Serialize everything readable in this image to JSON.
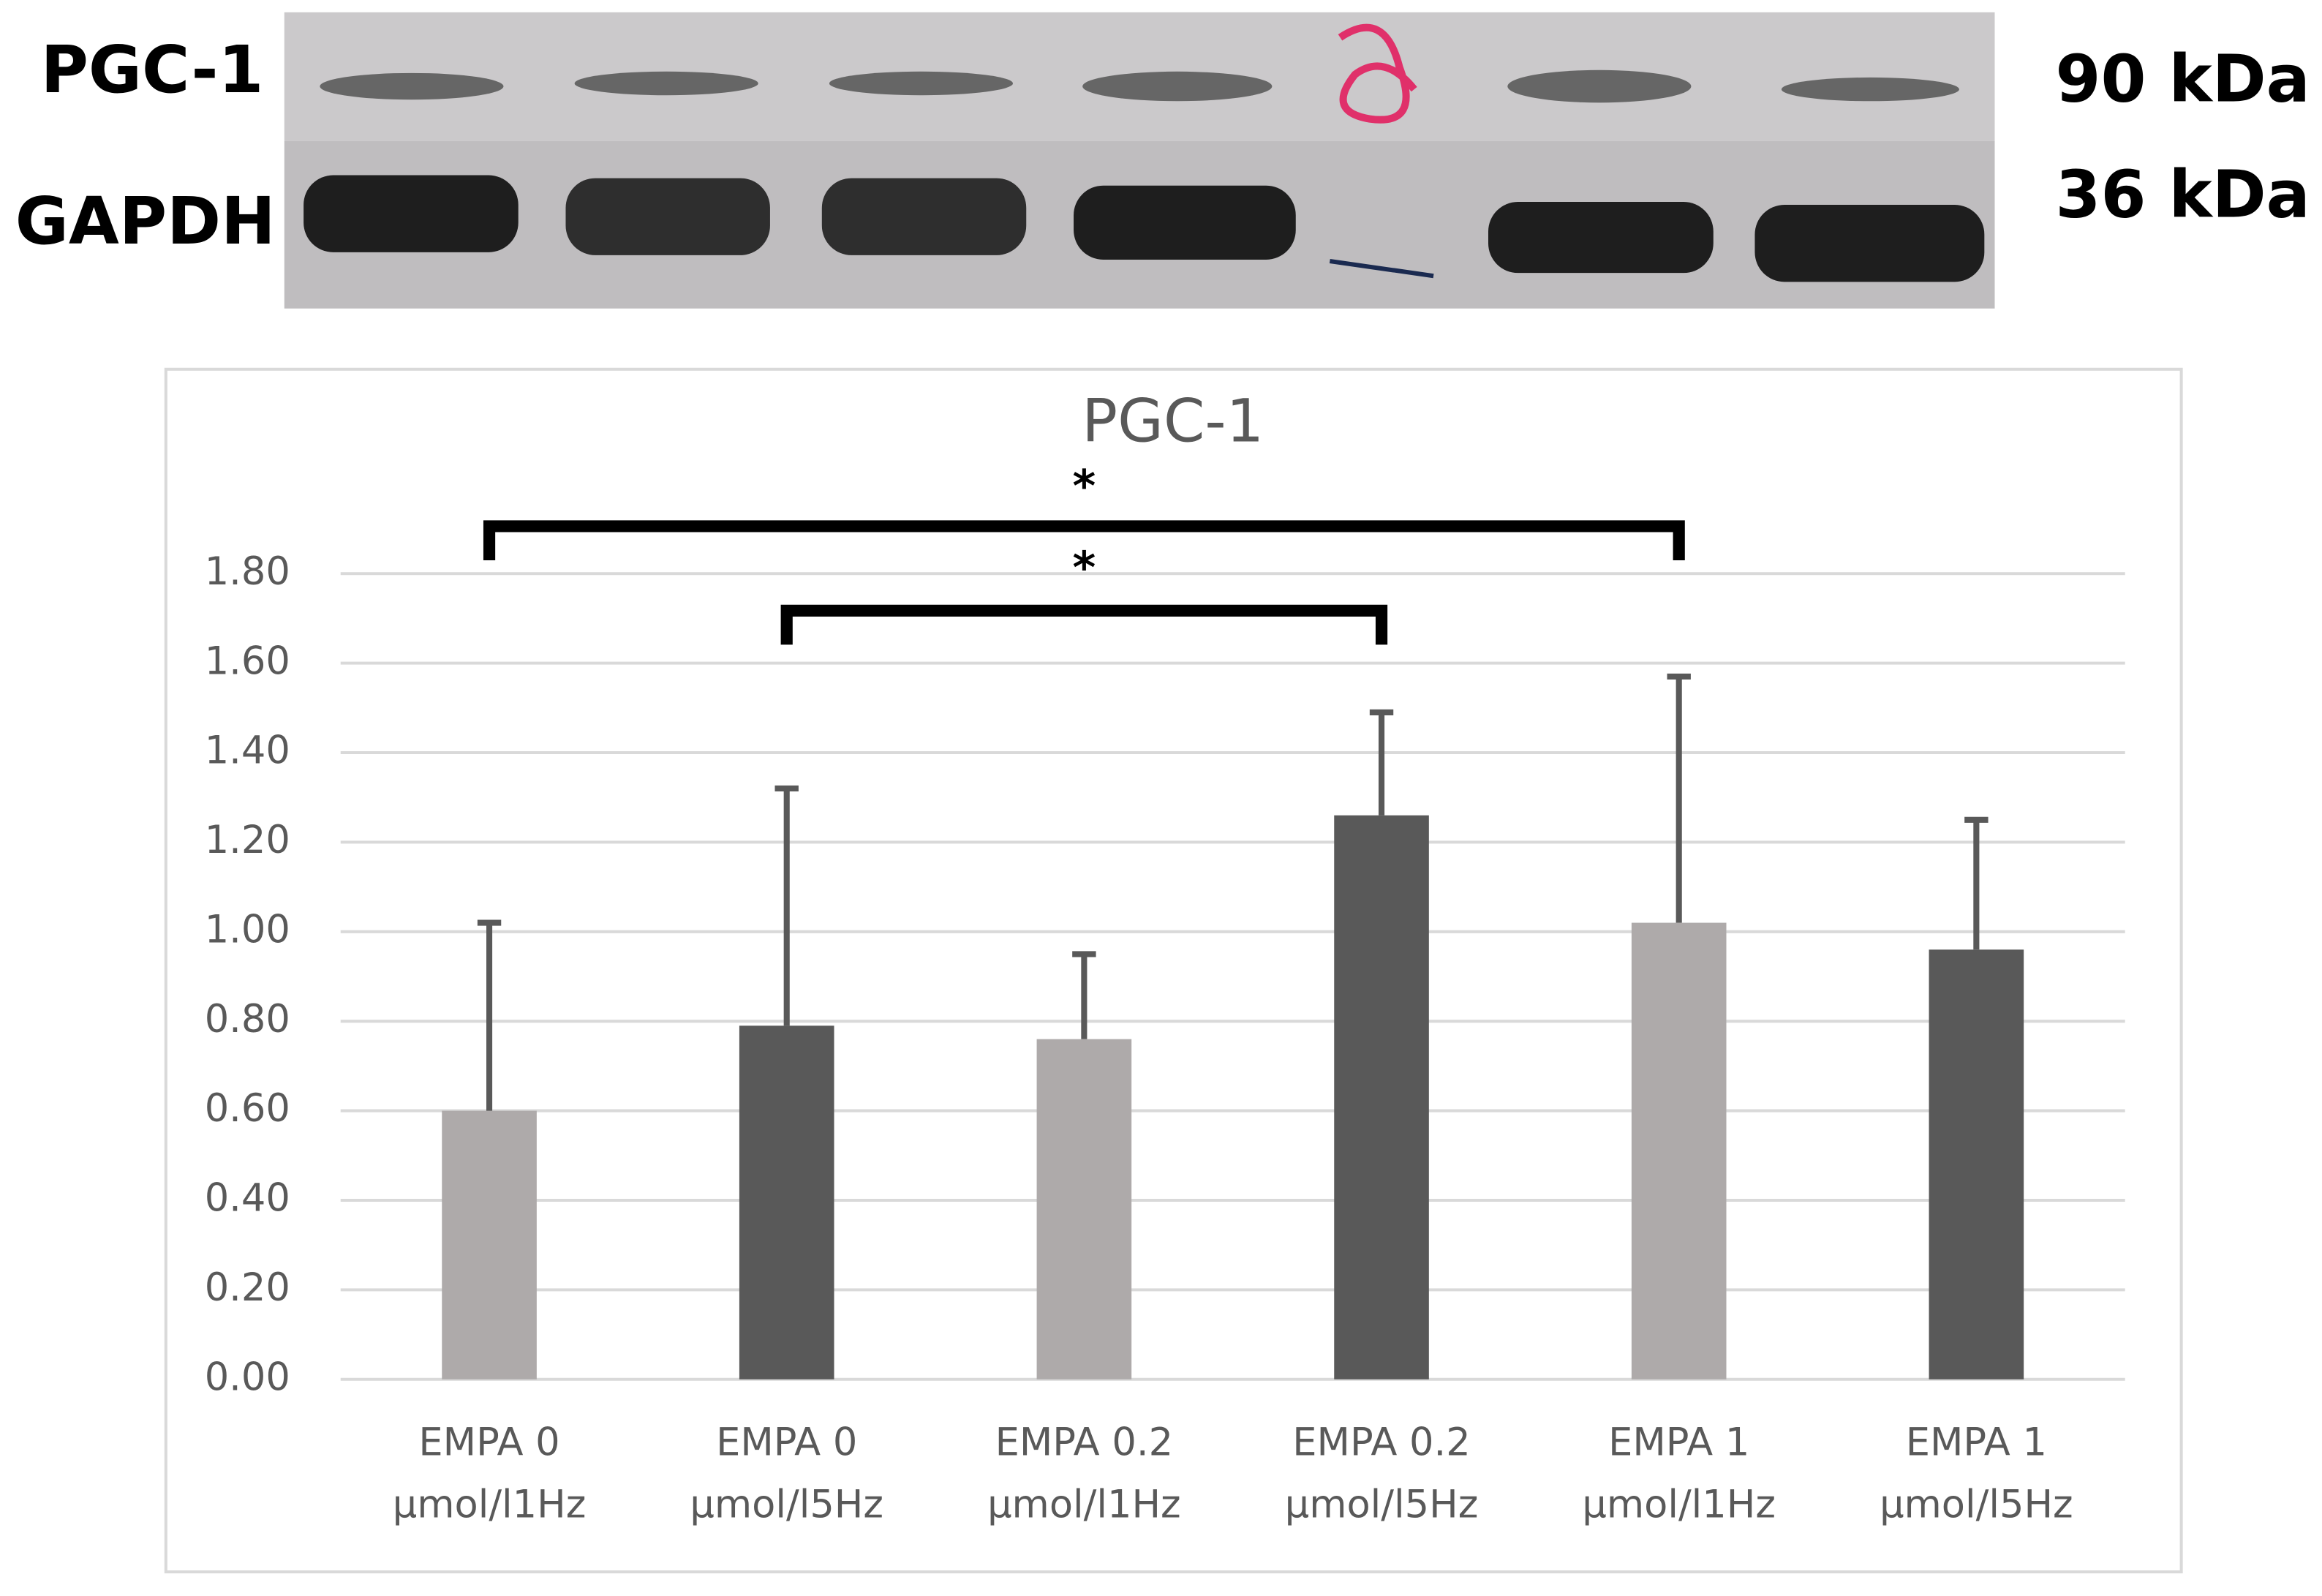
{
  "blot": {
    "left_labels": [
      "PGC-1",
      "GAPDH"
    ],
    "right_labels": [
      "90 kDa",
      "36 kDa"
    ]
  },
  "chart_data": {
    "type": "bar",
    "title": "PGC-1",
    "categories": [
      [
        "EMPA 0",
        "µmol/l1Hz"
      ],
      [
        "EMPA 0",
        "µmol/l5Hz"
      ],
      [
        "EMPA 0.2",
        "µmol/l1Hz"
      ],
      [
        "EMPA 0.2",
        "µmol/l5Hz"
      ],
      [
        "EMPA 1",
        "µmol/l1Hz"
      ],
      [
        "EMPA 1",
        "µmol/l5Hz"
      ]
    ],
    "values": [
      0.6,
      0.79,
      0.76,
      1.26,
      1.02,
      0.96
    ],
    "errors": [
      0.42,
      0.53,
      0.19,
      0.23,
      0.55,
      0.29
    ],
    "colors": [
      "#aeaaaa",
      "#595959",
      "#aeaaaa",
      "#595959",
      "#aeaaaa",
      "#595959"
    ],
    "ylim": [
      0,
      1.8
    ],
    "yticks": [
      {
        "value": 0,
        "label": "0.00"
      },
      {
        "value": 0.2,
        "label": "0.20"
      },
      {
        "value": 0.4,
        "label": "0.40"
      },
      {
        "value": 0.6,
        "label": "0.60"
      },
      {
        "value": 0.8,
        "label": "0.80"
      },
      {
        "value": 1.0,
        "label": "1.00"
      },
      {
        "value": 1.2,
        "label": "1.20"
      },
      {
        "value": 1.4,
        "label": "1.40"
      },
      {
        "value": 1.6,
        "label": "1.60"
      },
      {
        "value": 1.8,
        "label": "1.80"
      }
    ],
    "grid": true,
    "annotations": [
      {
        "text": "*",
        "from": 0,
        "to": 4
      },
      {
        "text": "*",
        "from": 1,
        "to": 3
      }
    ]
  }
}
